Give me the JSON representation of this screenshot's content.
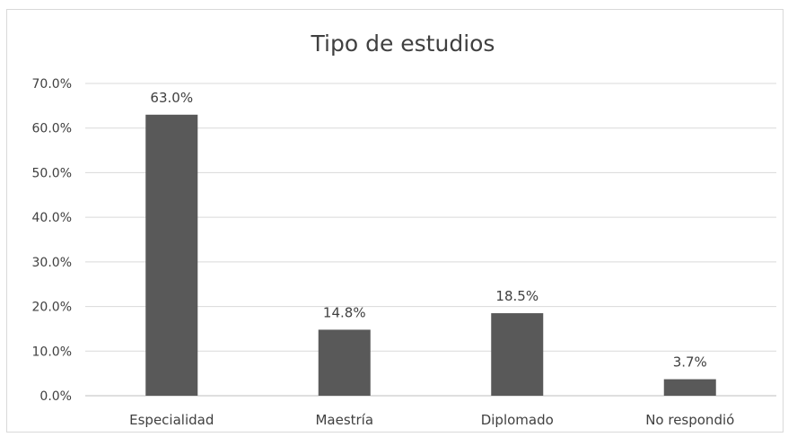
{
  "chart_data": {
    "type": "bar",
    "title": "Tipo de estudios",
    "categories": [
      "Especialidad",
      "Maestría",
      "Diplomado",
      "No respondió"
    ],
    "values": [
      63.0,
      14.8,
      18.5,
      3.7
    ],
    "data_labels": [
      "63.0%",
      "14.8%",
      "18.5%",
      "3.7%"
    ],
    "y_ticks": [
      "0.0%",
      "10.0%",
      "20.0%",
      "30.0%",
      "40.0%",
      "50.0%",
      "60.0%",
      "70.0%"
    ],
    "ylim": [
      0,
      70
    ],
    "xlabel": "",
    "ylabel": "",
    "grid": true,
    "bar_color": "#595959"
  }
}
